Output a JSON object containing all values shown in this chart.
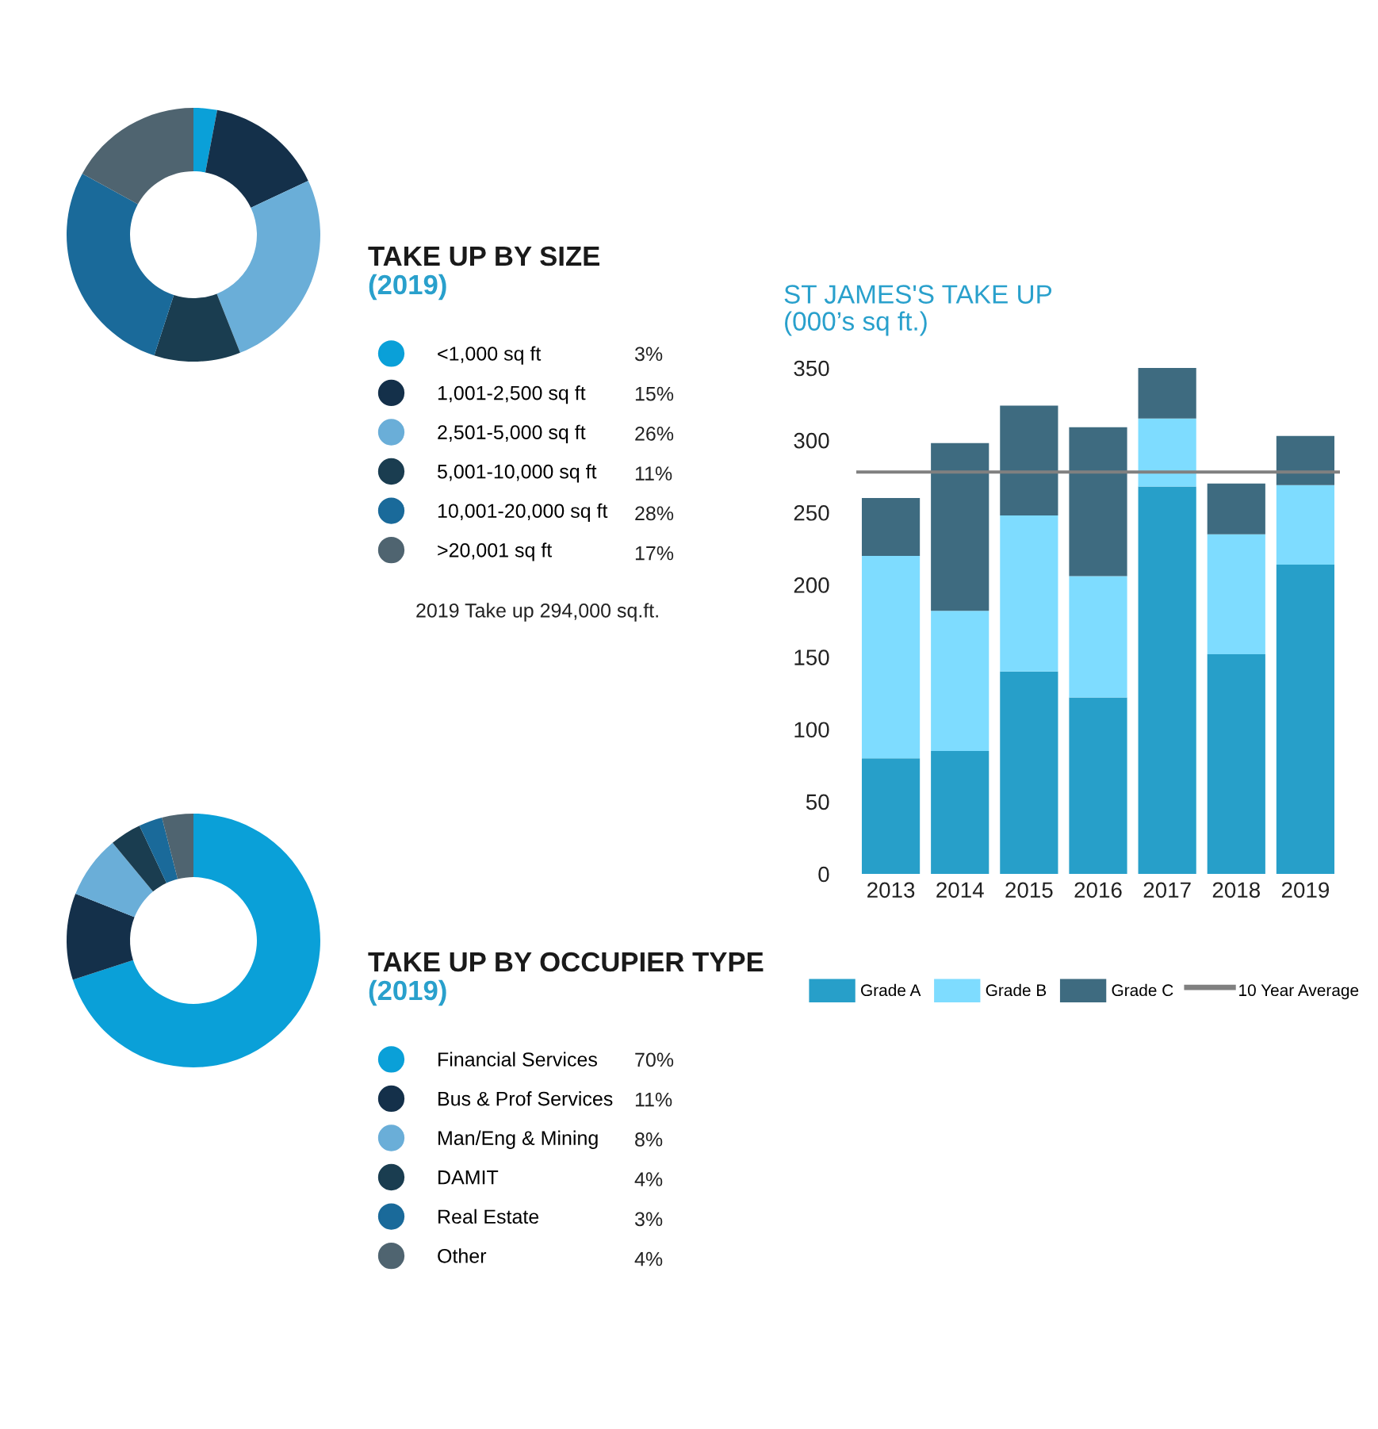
{
  "chart_data": [
    {
      "type": "donut",
      "title": "TAKE UP BY SIZE",
      "subtitle": "(2019)",
      "categories": [
        "<1,000 sq ft",
        "1,001-2,500 sq ft",
        "2,501-5,000 sq ft",
        "5,001-10,000 sq ft",
        "10,001-20,000 sq ft",
        ">20,001 sq ft"
      ],
      "values": [
        3,
        15,
        26,
        11,
        28,
        17
      ],
      "colors": [
        "#0aa0d8",
        "#14304a",
        "#6aaed8",
        "#1a3d50",
        "#1a6a9a",
        "#4f6470"
      ],
      "value_labels": [
        "3%",
        "15%",
        "26%",
        "11%",
        "28%",
        "17%"
      ],
      "legend": "bottom right",
      "annotations": [
        "2019 Take up 294,000 sq.ft."
      ]
    },
    {
      "type": "bar",
      "stacked": true,
      "title": "ST JAMES'S TAKE UP",
      "subtitle": "(000’s sq ft.)",
      "categories": [
        "2013",
        "2014",
        "2015",
        "2016",
        "2017",
        "2018",
        "2019"
      ],
      "series": [
        {
          "name": "Grade A",
          "color": "#279fc9",
          "values": [
            80,
            85,
            140,
            122,
            268,
            152,
            214
          ]
        },
        {
          "name": "Grade B",
          "color": "#7edcff",
          "values": [
            140,
            97,
            108,
            84,
            47,
            83,
            55
          ]
        },
        {
          "name": "Grade C",
          "color": "#3e6b80",
          "values": [
            40,
            116,
            76,
            103,
            35,
            35,
            34
          ]
        }
      ],
      "ref_lines": [
        {
          "axis": "y",
          "value": 278,
          "label": "10 Year Average",
          "color": "#808080"
        }
      ],
      "ylim": [
        0,
        350
      ],
      "yticks": [
        0,
        50,
        100,
        150,
        200,
        250,
        300,
        350
      ],
      "legend": "bottom",
      "grid": false
    },
    {
      "type": "donut",
      "title": "TAKE UP BY OCCUPIER TYPE",
      "subtitle": "(2019)",
      "categories": [
        "Financial Services",
        "Bus & Prof Services",
        "Man/Eng & Mining",
        "DAMIT",
        "Real Estate",
        "Other"
      ],
      "values": [
        70,
        11,
        8,
        4,
        3,
        4
      ],
      "colors": [
        "#0aa0d8",
        "#14304a",
        "#6aaed8",
        "#1a3d50",
        "#1a6a9a",
        "#4f6470"
      ],
      "value_labels": [
        "70%",
        "11%",
        "8%",
        "4%",
        "3%",
        "4%"
      ],
      "legend": "bottom right"
    }
  ]
}
